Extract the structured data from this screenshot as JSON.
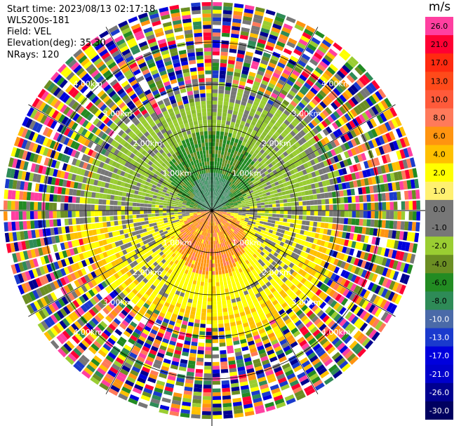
{
  "info": {
    "start_time": "Start time: 2023/08/13 02:17:18",
    "instrument": "WLS200s-181",
    "field": "Field: VEL",
    "elevation": "Elevation(deg): 35.30",
    "nrays": "NRays: 120"
  },
  "chart_data": {
    "type": "heatmap",
    "projection": "polar (PPI)",
    "ray_count": 120,
    "range_rings_km": [
      1.0,
      2.0,
      3.0,
      4.0
    ],
    "ring_labels": [
      "1.00km",
      "2.00km",
      "3.00km",
      "4.00km"
    ],
    "colorbar": {
      "unit": "m/s",
      "tick_labels": [
        "26.0",
        "21.0",
        "17.0",
        "13.0",
        "10.0",
        "8.0",
        "6.0",
        "4.0",
        "2.0",
        "1.0",
        "0.0",
        "-1.0",
        "-2.0",
        "-4.0",
        "-6.0",
        "-8.0",
        "-10.0",
        "-13.0",
        "-17.0",
        "-21.0",
        "-26.0",
        "-30.0"
      ],
      "colors": [
        "#ff3fa0",
        "#ff0033",
        "#ff2a10",
        "#ff4a1a",
        "#ff5a3a",
        "#ff7a5a",
        "#ff9410",
        "#ffc000",
        "#ffff00",
        "#fff070",
        "#777777",
        "#777777",
        "#9acd32",
        "#6b8e23",
        "#228b22",
        "#2e8b57",
        "#4a6aa8",
        "#1a3acd",
        "#0000dd",
        "#0000cc",
        "#000090",
        "#000060"
      ],
      "light_text_labels": [
        "-10.0",
        "-13.0",
        "-17.0",
        "-21.0",
        "-26.0",
        "-30.0"
      ]
    }
  }
}
